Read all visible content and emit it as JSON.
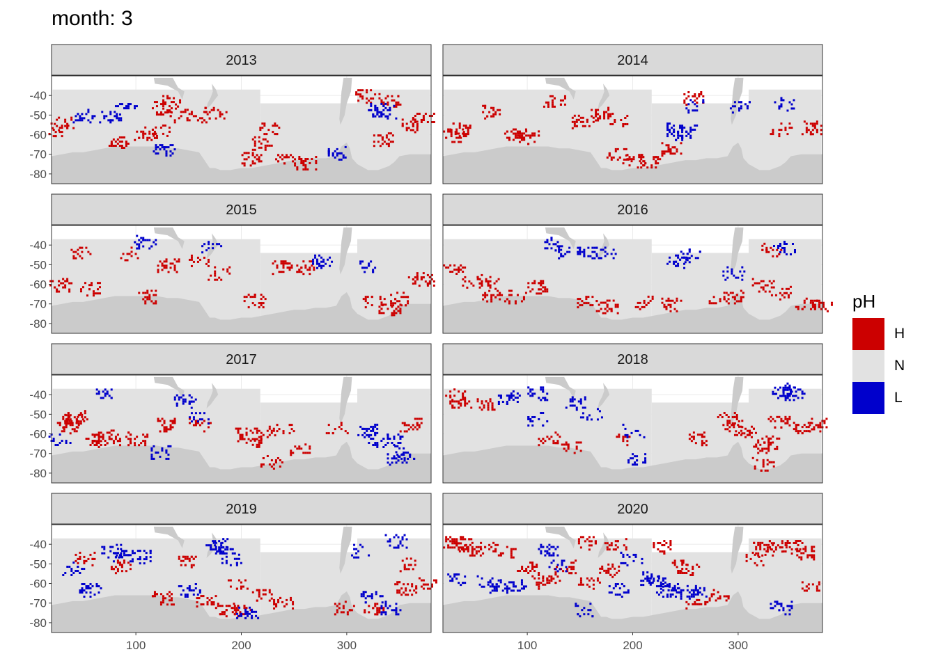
{
  "title": "month: 3",
  "colors": {
    "H": "#cc0000",
    "N": "#e2e2e2",
    "L": "#0000cc",
    "land": "#cbcbcb",
    "strip_bg": "#d9d9d9",
    "frame": "#333333",
    "grid": "#ebebeb"
  },
  "legend": {
    "title": "pH",
    "items": [
      {
        "label": "H",
        "color": "#cc0000"
      },
      {
        "label": "N",
        "color": "#e2e2e2"
      },
      {
        "label": "L",
        "color": "#0000cc"
      }
    ]
  },
  "chart_data": {
    "type": "heatmap",
    "title": "month: 3",
    "facet_by": "year",
    "facets": [
      "2013",
      "2014",
      "2015",
      "2016",
      "2017",
      "2018",
      "2019",
      "2020"
    ],
    "xlim": [
      20,
      380
    ],
    "ylim": [
      -85,
      -30
    ],
    "x_ticks": [
      100,
      200,
      300
    ],
    "y_ticks": [
      -40,
      -50,
      -60,
      -70,
      -80
    ],
    "categories": [
      "H",
      "N",
      "L"
    ],
    "patches": {
      "2013": {
        "H": [
          [
            27,
            -57
          ],
          [
            30,
            -54
          ],
          [
            125,
            -46
          ],
          [
            131,
            -43
          ],
          [
            140,
            -50
          ],
          [
            158,
            -50
          ],
          [
            175,
            -48
          ],
          [
            225,
            -57
          ],
          [
            218,
            -64
          ],
          [
            240,
            -72
          ],
          [
            262,
            -74
          ],
          [
            316,
            -40
          ],
          [
            340,
            -42
          ],
          [
            335,
            -62
          ],
          [
            360,
            -55
          ],
          [
            372,
            -52
          ],
          [
            82,
            -63
          ],
          [
            108,
            -59
          ],
          [
            123,
            -58
          ],
          [
            208,
            -72
          ]
        ],
        "L": [
          [
            50,
            -50
          ],
          [
            75,
            -50
          ],
          [
            90,
            -46
          ],
          [
            330,
            -47
          ],
          [
            336,
            -48
          ],
          [
            288,
            -69
          ],
          [
            126,
            -68
          ]
        ]
      },
      "2014": {
        "H": [
          [
            30,
            -60
          ],
          [
            35,
            -57
          ],
          [
            65,
            -48
          ],
          [
            88,
            -60
          ],
          [
            100,
            -61
          ],
          [
            125,
            -42
          ],
          [
            152,
            -53
          ],
          [
            170,
            -49
          ],
          [
            186,
            -52
          ],
          [
            185,
            -69
          ],
          [
            200,
            -73
          ],
          [
            215,
            -73
          ],
          [
            235,
            -67
          ],
          [
            258,
            -41
          ],
          [
            340,
            -57
          ],
          [
            370,
            -56
          ]
        ],
        "L": [
          [
            240,
            -57
          ],
          [
            246,
            -59
          ],
          [
            250,
            -58
          ],
          [
            258,
            -45
          ],
          [
            302,
            -45
          ],
          [
            342,
            -44
          ]
        ]
      },
      "2015": {
        "H": [
          [
            28,
            -60
          ],
          [
            55,
            -62
          ],
          [
            48,
            -43
          ],
          [
            93,
            -44
          ],
          [
            110,
            -66
          ],
          [
            130,
            -50
          ],
          [
            160,
            -47
          ],
          [
            178,
            -54
          ],
          [
            212,
            -68
          ],
          [
            237,
            -51
          ],
          [
            260,
            -51
          ],
          [
            325,
            -68
          ],
          [
            349,
            -67
          ],
          [
            366,
            -57
          ],
          [
            372,
            -58
          ],
          [
            340,
            -72
          ]
        ],
        "L": [
          [
            108,
            -38
          ],
          [
            170,
            -40
          ],
          [
            275,
            -48
          ],
          [
            316,
            -50
          ]
        ]
      },
      "2016": {
        "H": [
          [
            30,
            -52
          ],
          [
            48,
            -58
          ],
          [
            62,
            -59
          ],
          [
            65,
            -65
          ],
          [
            88,
            -66
          ],
          [
            110,
            -61
          ],
          [
            155,
            -68
          ],
          [
            175,
            -71
          ],
          [
            210,
            -69
          ],
          [
            235,
            -70
          ],
          [
            280,
            -67
          ],
          [
            296,
            -66
          ],
          [
            323,
            -60
          ],
          [
            341,
            -64
          ],
          [
            364,
            -70
          ],
          [
            378,
            -70
          ],
          [
            330,
            -42
          ]
        ],
        "L": [
          [
            124,
            -39
          ],
          [
            139,
            -43
          ],
          [
            155,
            -43
          ],
          [
            173,
            -44
          ],
          [
            240,
            -48
          ],
          [
            255,
            -45
          ],
          [
            295,
            -54
          ],
          [
            343,
            -41
          ]
        ]
      },
      "2017": {
        "H": [
          [
            35,
            -56
          ],
          [
            40,
            -53
          ],
          [
            43,
            -51
          ],
          [
            60,
            -63
          ],
          [
            68,
            -61
          ],
          [
            88,
            -62
          ],
          [
            100,
            -62
          ],
          [
            130,
            -55
          ],
          [
            160,
            -55
          ],
          [
            204,
            -60
          ],
          [
            210,
            -64
          ],
          [
            222,
            -59
          ],
          [
            228,
            -74
          ],
          [
            239,
            -57
          ],
          [
            256,
            -67
          ],
          [
            290,
            -57
          ],
          [
            360,
            -55
          ]
        ],
        "L": [
          [
            27,
            -63
          ],
          [
            70,
            -39
          ],
          [
            122,
            -69
          ],
          [
            146,
            -43
          ],
          [
            160,
            -51
          ],
          [
            320,
            -58
          ],
          [
            330,
            -63
          ],
          [
            342,
            -63
          ],
          [
            346,
            -72
          ],
          [
            355,
            -69
          ]
        ]
      },
      "2018": {
        "H": [
          [
            30,
            -40
          ],
          [
            36,
            -44
          ],
          [
            60,
            -45
          ],
          [
            120,
            -62
          ],
          [
            140,
            -66
          ],
          [
            190,
            -62
          ],
          [
            263,
            -62
          ],
          [
            290,
            -52
          ],
          [
            295,
            -56
          ],
          [
            306,
            -59
          ],
          [
            322,
            -66
          ],
          [
            323,
            -75
          ],
          [
            330,
            -64
          ],
          [
            338,
            -53
          ],
          [
            360,
            -57
          ],
          [
            375,
            -55
          ]
        ],
        "L": [
          [
            82,
            -41
          ],
          [
            108,
            -39
          ],
          [
            110,
            -52
          ],
          [
            146,
            -44
          ],
          [
            160,
            -50
          ],
          [
            200,
            -58
          ],
          [
            205,
            -73
          ],
          [
            340,
            -37
          ],
          [
            345,
            -38
          ],
          [
            352,
            -39
          ]
        ]
      },
      "2019": {
        "H": [
          [
            52,
            -47
          ],
          [
            86,
            -51
          ],
          [
            125,
            -67
          ],
          [
            148,
            -48
          ],
          [
            165,
            -68
          ],
          [
            185,
            -73
          ],
          [
            195,
            -60
          ],
          [
            198,
            -73
          ],
          [
            220,
            -65
          ],
          [
            240,
            -69
          ],
          [
            298,
            -72
          ],
          [
            326,
            -72
          ],
          [
            355,
            -62
          ],
          [
            376,
            -60
          ],
          [
            360,
            -50
          ]
        ],
        "L": [
          [
            40,
            -52
          ],
          [
            56,
            -63
          ],
          [
            77,
            -43
          ],
          [
            88,
            -45
          ],
          [
            107,
            -46
          ],
          [
            150,
            -63
          ],
          [
            176,
            -40
          ],
          [
            183,
            -42
          ],
          [
            191,
            -48
          ],
          [
            205,
            -75
          ],
          [
            312,
            -43
          ],
          [
            323,
            -67
          ],
          [
            340,
            -72
          ],
          [
            346,
            -38
          ]
        ]
      },
      "2020": {
        "H": [
          [
            30,
            -39
          ],
          [
            38,
            -39
          ],
          [
            45,
            -42
          ],
          [
            63,
            -42
          ],
          [
            80,
            -43
          ],
          [
            100,
            -52
          ],
          [
            112,
            -59
          ],
          [
            120,
            -57
          ],
          [
            135,
            -51
          ],
          [
            156,
            -39
          ],
          [
            158,
            -59
          ],
          [
            178,
            -53
          ],
          [
            183,
            -40
          ],
          [
            227,
            -41
          ],
          [
            247,
            -50
          ],
          [
            252,
            -52
          ],
          [
            260,
            -69
          ],
          [
            280,
            -66
          ],
          [
            315,
            -47
          ],
          [
            322,
            -42
          ],
          [
            335,
            -40
          ],
          [
            350,
            -41
          ],
          [
            363,
            -44
          ],
          [
            370,
            -61
          ]
        ],
        "L": [
          [
            32,
            -57
          ],
          [
            62,
            -59
          ],
          [
            72,
            -61
          ],
          [
            88,
            -61
          ],
          [
            120,
            -43
          ],
          [
            130,
            -50
          ],
          [
            153,
            -73
          ],
          [
            185,
            -63
          ],
          [
            198,
            -47
          ],
          [
            215,
            -57
          ],
          [
            224,
            -59
          ],
          [
            232,
            -63
          ],
          [
            243,
            -64
          ],
          [
            261,
            -64
          ],
          [
            340,
            -72
          ]
        ]
      }
    }
  }
}
